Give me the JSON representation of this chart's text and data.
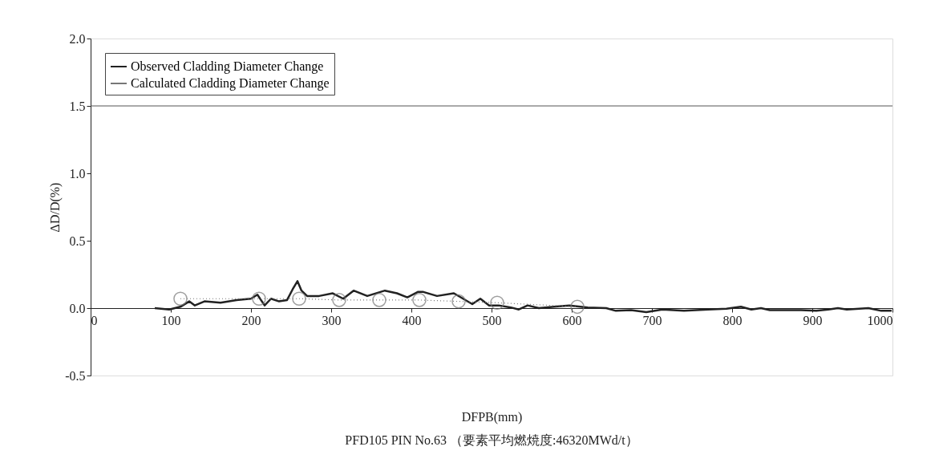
{
  "chart_data": {
    "type": "line",
    "xlabel": "DFPB(mm)",
    "ylabel": "ΔD/D(%)",
    "annotations": [
      "PFD105 PIN No.63 （要素平均燃焼度:46320MWd/t）"
    ],
    "xlim": [
      0,
      1000
    ],
    "xticks": [
      0,
      100,
      200,
      300,
      400,
      500,
      600,
      700,
      800,
      900,
      1000
    ],
    "ylim": [
      -0.5,
      2.0
    ],
    "yticks": [
      {
        "value": -0.5,
        "label": "-0.5"
      },
      {
        "value": 0,
        "label": "0.0"
      },
      {
        "value": 0.5,
        "label": "0.5"
      },
      {
        "value": 1.0,
        "label": "1.0"
      },
      {
        "value": 1.5,
        "label": "1.5"
      },
      {
        "value": 2.0,
        "label": "2.0"
      }
    ],
    "grid": false,
    "legend": "top left",
    "ref_lines": [
      {
        "axis": "y",
        "value": 1.5,
        "color": "#555555"
      }
    ],
    "series": [
      {
        "name": "Observed Cladding Diameter Change",
        "color": "#222222",
        "type": "line",
        "marker": "none",
        "line_style": "solid",
        "x": [
          80,
          98,
          112,
          123,
          130,
          142,
          162,
          182,
          200,
          208,
          217,
          225,
          235,
          245,
          252,
          258,
          263,
          270,
          285,
          302,
          315,
          328,
          345,
          367,
          382,
          395,
          408,
          415,
          432,
          453,
          476,
          486,
          497,
          509,
          524,
          534,
          545,
          559,
          578,
          597,
          620,
          643,
          655,
          674,
          693,
          713,
          740,
          770,
          793,
          811,
          824,
          836,
          847,
          886,
          905,
          920,
          932,
          943,
          970,
          986,
          999
        ],
        "values": [
          0.0,
          -0.01,
          0.01,
          0.05,
          0.02,
          0.05,
          0.04,
          0.06,
          0.07,
          0.1,
          0.02,
          0.07,
          0.05,
          0.06,
          0.14,
          0.2,
          0.13,
          0.09,
          0.09,
          0.11,
          0.07,
          0.13,
          0.09,
          0.13,
          0.11,
          0.08,
          0.12,
          0.12,
          0.09,
          0.11,
          0.03,
          0.07,
          0.02,
          0.02,
          0.005,
          -0.01,
          0.02,
          0.0,
          0.01,
          0.02,
          0.005,
          0.0,
          -0.02,
          -0.015,
          -0.03,
          -0.01,
          -0.02,
          -0.01,
          -0.005,
          0.01,
          -0.01,
          0.0,
          -0.015,
          -0.015,
          -0.02,
          -0.01,
          0.0,
          -0.01,
          0.0,
          -0.02,
          -0.02
        ]
      },
      {
        "name": "Calculated Cladding Diameter Change",
        "color": "#777777",
        "type": "line",
        "marker": "circle",
        "line_style": "dotted",
        "x": [
          112,
          210,
          260,
          310,
          360,
          410,
          459,
          507,
          607
        ],
        "values": [
          0.07,
          0.07,
          0.07,
          0.06,
          0.06,
          0.06,
          0.05,
          0.04,
          0.01
        ]
      }
    ]
  }
}
